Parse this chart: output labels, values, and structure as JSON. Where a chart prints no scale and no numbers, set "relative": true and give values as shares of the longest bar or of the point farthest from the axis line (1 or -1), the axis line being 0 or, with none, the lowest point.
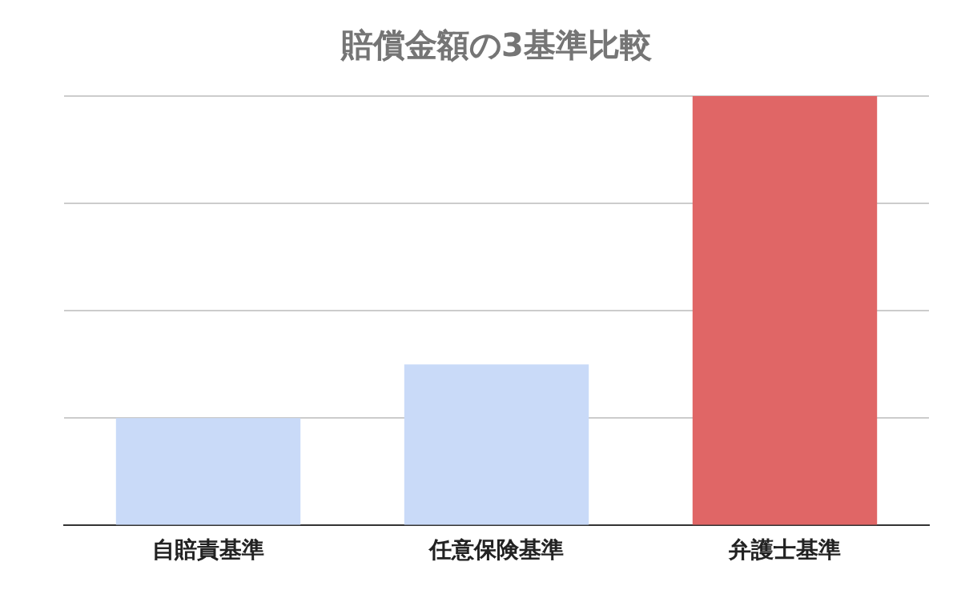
{
  "chart_data": {
    "type": "bar",
    "title": "賠償金額の3基準比較",
    "categories": [
      "自賠責基準",
      "任意保険基準",
      "弁護士基準"
    ],
    "values": [
      0.25,
      0.375,
      1
    ],
    "colors": [
      "#c9daf8",
      "#c9daf8",
      "#e06666"
    ],
    "relative": true,
    "grid": "y",
    "legend": false
  }
}
